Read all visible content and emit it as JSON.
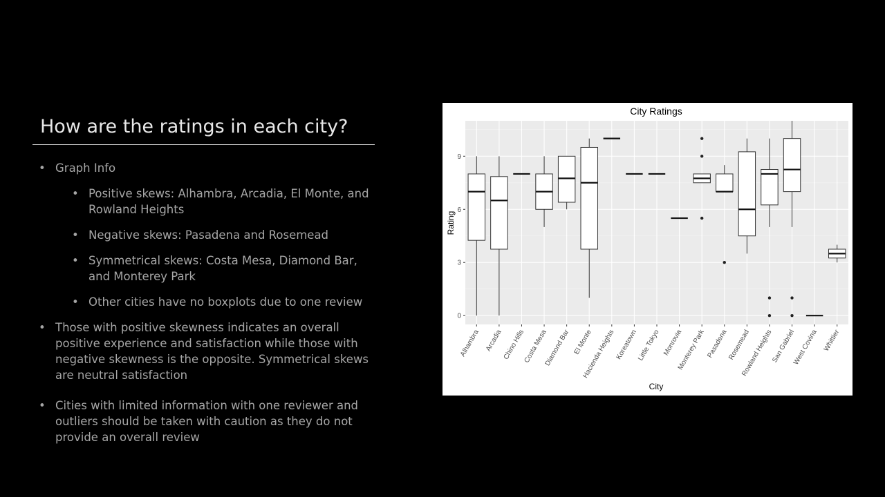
{
  "slide": {
    "title": "How are the ratings in each city?",
    "bullets": [
      {
        "level": 1,
        "text": "Graph Info"
      },
      {
        "level": 2,
        "text": "Positive skews: Alhambra, Arcadia, El Monte, and Rowland Heights"
      },
      {
        "level": 2,
        "text": "Negative skews: Pasadena and Rosemead"
      },
      {
        "level": 2,
        "text": "Symmetrical skews: Costa Mesa, Diamond Bar, and Monterey Park"
      },
      {
        "level": 2,
        "text": "Other cities have no boxplots due to one review"
      },
      {
        "level": 1,
        "text": "Those with positive skewness indicates an overall positive experience and satisfaction while those with negative skewness is the opposite. Symmetrical skews are neutral satisfaction"
      },
      {
        "level": 1,
        "text": "Cities with limited information with one reviewer and outliers should be taken with caution as they do not provide an overall review"
      }
    ]
  },
  "chart_data": {
    "type": "boxplot",
    "title": "City Ratings",
    "xlabel": "City",
    "ylabel": "Rating",
    "ylim": [
      -0.5,
      11
    ],
    "yticks": [
      0,
      3,
      6,
      9
    ],
    "grid": true,
    "categories": [
      "Alhambra",
      "Arcadia",
      "Chino Hills",
      "Costa Mesa",
      "Diamond Bar",
      "El Monte",
      "Hacienda Heights",
      "Koreatown",
      "Little Tokyo",
      "Monrovia",
      "Monterey Park",
      "Pasadena",
      "Rosemead",
      "Rowland Heights",
      "San Gabriel",
      "West Covina",
      "Whittier"
    ],
    "boxes": [
      {
        "min": 0,
        "q1": 4.25,
        "median": 7,
        "q3": 8,
        "max": 9,
        "outliers": []
      },
      {
        "min": 0,
        "q1": 3.75,
        "median": 6.5,
        "q3": 7.85,
        "max": 9,
        "outliers": []
      },
      {
        "min": 8,
        "q1": 8,
        "median": 8,
        "q3": 8,
        "max": 8,
        "outliers": []
      },
      {
        "min": 5,
        "q1": 6,
        "median": 7,
        "q3": 8,
        "max": 9,
        "outliers": []
      },
      {
        "min": 6,
        "q1": 6.4,
        "median": 7.75,
        "q3": 9,
        "max": 9,
        "outliers": []
      },
      {
        "min": 1,
        "q1": 3.75,
        "median": 7.5,
        "q3": 9.5,
        "max": 10,
        "outliers": []
      },
      {
        "min": 10,
        "q1": 10,
        "median": 10,
        "q3": 10,
        "max": 10,
        "outliers": []
      },
      {
        "min": 8,
        "q1": 8,
        "median": 8,
        "q3": 8,
        "max": 8,
        "outliers": []
      },
      {
        "min": 8,
        "q1": 8,
        "median": 8,
        "q3": 8,
        "max": 8,
        "outliers": []
      },
      {
        "min": 5.5,
        "q1": 5.5,
        "median": 5.5,
        "q3": 5.5,
        "max": 5.5,
        "outliers": []
      },
      {
        "min": 7.5,
        "q1": 7.5,
        "median": 7.75,
        "q3": 8,
        "max": 8,
        "outliers": [
          5.5,
          9,
          10
        ]
      },
      {
        "min": 7,
        "q1": 7,
        "median": 7,
        "q3": 8,
        "max": 8.5,
        "outliers": [
          3
        ]
      },
      {
        "min": 3.5,
        "q1": 4.5,
        "median": 6,
        "q3": 9.25,
        "max": 10,
        "outliers": []
      },
      {
        "min": 5,
        "q1": 6.25,
        "median": 8,
        "q3": 8.25,
        "max": 10,
        "outliers": [
          0,
          1
        ]
      },
      {
        "min": 5,
        "q1": 7,
        "median": 8.25,
        "q3": 10,
        "max": 11,
        "outliers": [
          0,
          1
        ]
      },
      {
        "min": 0,
        "q1": 0,
        "median": 0,
        "q3": 0,
        "max": 0,
        "outliers": []
      },
      {
        "min": 3,
        "q1": 3.25,
        "median": 3.5,
        "q3": 3.75,
        "max": 4,
        "outliers": []
      }
    ]
  }
}
